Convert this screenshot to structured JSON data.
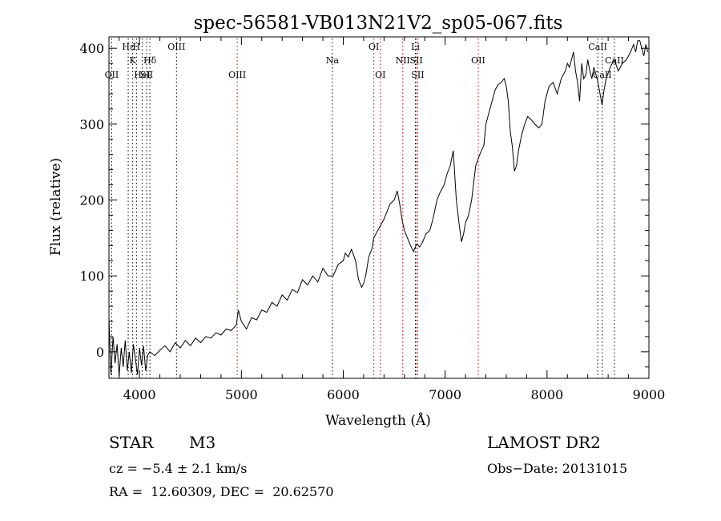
{
  "chart_data": {
    "type": "line",
    "title": "spec-56581-VB013N21V2_sp05-067.fits",
    "xlabel": "Wavelength (Å)",
    "ylabel": "Flux (relative)",
    "xlim": [
      3700,
      9000
    ],
    "ylim": [
      -35,
      415
    ],
    "x_ticks": [
      4000,
      5000,
      6000,
      7000,
      8000,
      9000
    ],
    "y_ticks": [
      0,
      100,
      200,
      300,
      400
    ],
    "grid": false,
    "series": [
      {
        "x": [
          3700,
          3720,
          3740,
          3760,
          3780,
          3800,
          3820,
          3840,
          3860,
          3880,
          3900,
          3920,
          3940,
          3960,
          3980,
          4000,
          4020,
          4040,
          4060,
          4080,
          4100,
          4150,
          4200,
          4250,
          4300,
          4350,
          4400,
          4450,
          4500,
          4550,
          4600,
          4650,
          4700,
          4750,
          4800,
          4850,
          4900,
          4950,
          4970,
          5000,
          5050,
          5100,
          5150,
          5200,
          5250,
          5300,
          5350,
          5400,
          5450,
          5500,
          5550,
          5600,
          5650,
          5700,
          5750,
          5800,
          5850,
          5900,
          5950,
          6000,
          6020,
          6050,
          6080,
          6100,
          6120,
          6150,
          6180,
          6200,
          6220,
          6250,
          6280,
          6300,
          6330,
          6360,
          6400,
          6430,
          6460,
          6500,
          6530,
          6560,
          6580,
          6600,
          6630,
          6660,
          6690,
          6720,
          6750,
          6780,
          6810,
          6850,
          6880,
          6920,
          6950,
          6990,
          7020,
          7050,
          7080,
          7110,
          7140,
          7160,
          7180,
          7200,
          7230,
          7260,
          7300,
          7340,
          7380,
          7400,
          7430,
          7460,
          7490,
          7520,
          7550,
          7580,
          7600,
          7620,
          7640,
          7660,
          7680,
          7700,
          7720,
          7750,
          7780,
          7810,
          7850,
          7880,
          7920,
          7950,
          7980,
          8020,
          8060,
          8100,
          8140,
          8180,
          8200,
          8220,
          8240,
          8260,
          8280,
          8300,
          8320,
          8340,
          8360,
          8380,
          8400,
          8420,
          8440,
          8460,
          8480,
          8500,
          8520,
          8540,
          8560,
          8580,
          8620,
          8660,
          8700,
          8740,
          8780,
          8820,
          8850,
          8870,
          8890,
          8910,
          8930,
          8950,
          8970,
          8990
        ],
        "y": [
          45,
          -30,
          20,
          -15,
          10,
          -32,
          5,
          -20,
          15,
          -25,
          0,
          -28,
          10,
          -10,
          -30,
          5,
          -18,
          8,
          -25,
          -5,
          0,
          -5,
          2,
          8,
          0,
          12,
          5,
          15,
          8,
          18,
          12,
          20,
          18,
          25,
          22,
          30,
          28,
          35,
          55,
          40,
          30,
          45,
          42,
          55,
          52,
          65,
          60,
          75,
          68,
          82,
          78,
          95,
          88,
          100,
          92,
          110,
          100,
          100,
          115,
          120,
          130,
          125,
          135,
          128,
          120,
          95,
          85,
          90,
          100,
          125,
          135,
          150,
          158,
          165,
          175,
          185,
          195,
          200,
          212,
          190,
          172,
          160,
          150,
          140,
          132,
          142,
          138,
          145,
          155,
          160,
          175,
          200,
          210,
          220,
          235,
          245,
          265,
          200,
          165,
          145,
          155,
          170,
          180,
          200,
          245,
          260,
          272,
          300,
          315,
          330,
          345,
          352,
          355,
          360,
          350,
          330,
          290,
          270,
          238,
          245,
          265,
          285,
          300,
          310,
          305,
          300,
          295,
          300,
          330,
          350,
          355,
          340,
          360,
          370,
          380,
          375,
          385,
          395,
          370,
          355,
          330,
          380,
          360,
          365,
          385,
          370,
          360,
          375,
          365,
          355,
          340,
          325,
          345,
          360,
          375,
          385,
          370,
          380,
          385,
          395,
          405,
          395,
          410,
          410,
          400,
          390,
          405,
          395
        ]
      }
    ],
    "line_markers": [
      {
        "wave": 3727,
        "label": "OII",
        "row": 3,
        "color": "#000000"
      },
      {
        "wave": 3889,
        "label": "Hε",
        "row": 1,
        "color": "#000000"
      },
      {
        "wave": 3933,
        "label": "K",
        "row": 2,
        "color": "#000000"
      },
      {
        "wave": 3970,
        "label": "H",
        "row": 1,
        "color": "#000000"
      },
      {
        "wave": 4026,
        "label": "HeI",
        "row": 3,
        "color": "#000000"
      },
      {
        "wave": 4070,
        "label": "SII",
        "row": 3,
        "color": "#000000"
      },
      {
        "wave": 4102,
        "label": "Hδ",
        "row": 2,
        "color": "#000000"
      },
      {
        "wave": 4363,
        "label": "OIII",
        "row": 1,
        "color": "#000000"
      },
      {
        "wave": 4959,
        "label": "OIII",
        "row": 3,
        "color": "#cc0000"
      },
      {
        "wave": 5893,
        "label": "Na",
        "row": 2,
        "color": "#000000"
      },
      {
        "wave": 6300,
        "label": "OI",
        "row": 1,
        "color": "#cc0000"
      },
      {
        "wave": 6364,
        "label": "OI",
        "row": 3,
        "color": "#cc0000"
      },
      {
        "wave": 6584,
        "label": "NII",
        "row": 2,
        "color": "#cc0000"
      },
      {
        "wave": 6708,
        "label": "Li",
        "row": 1,
        "color": "#000000"
      },
      {
        "wave": 6717,
        "label": "SII",
        "row": 2,
        "color": "#cc0000"
      },
      {
        "wave": 6731,
        "label": "SII",
        "row": 3,
        "color": "#cc0000"
      },
      {
        "wave": 7325,
        "label": "OII",
        "row": 2,
        "color": "#cc0000"
      },
      {
        "wave": 8498,
        "label": "CaII",
        "row": 1,
        "color": "#000000"
      },
      {
        "wave": 8542,
        "label": "CaII",
        "row": 3,
        "color": "#000000"
      },
      {
        "wave": 8662,
        "label": "CaII",
        "row": 2,
        "color": "#000000"
      }
    ]
  },
  "info": {
    "class_label": "STAR",
    "subclass": "M3",
    "survey": "LAMOST DR2",
    "cz": "cz = −5.4 ± 2.1 km/s",
    "obs_date": "Obs−Date: 20131015",
    "coords": "RA =  12.60309, DEC =  20.62570"
  }
}
